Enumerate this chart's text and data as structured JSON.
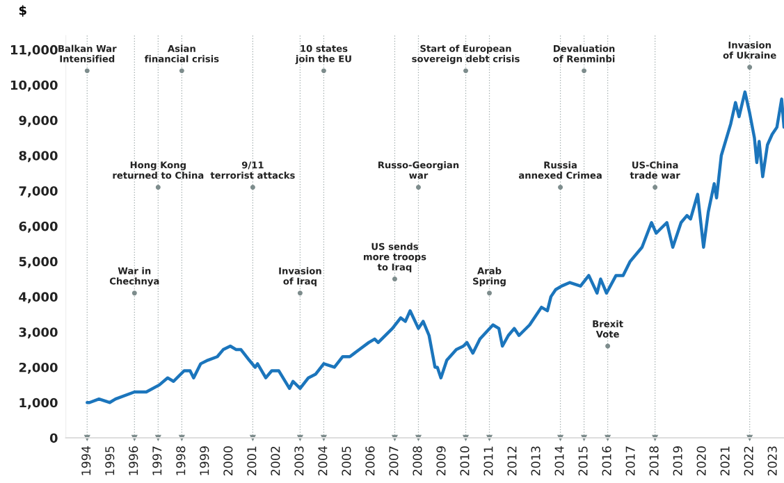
{
  "chart_data": {
    "type": "line",
    "ylabel": "$",
    "series": [
      {
        "color": "#1b75bc",
        "x": [
          1994.0,
          1994.1,
          1994.5,
          1994.95,
          1995.2,
          1996.0,
          1996.5,
          1997.05,
          1997.4,
          1997.65,
          1998.1,
          1998.35,
          1998.5,
          1998.8,
          1999.1,
          1999.5,
          1999.75,
          2000.05,
          2000.3,
          2000.5,
          2000.85,
          2001.1,
          2001.2,
          2001.55,
          2001.8,
          2002.1,
          2002.55,
          2002.7,
          2003.0,
          2003.35,
          2003.65,
          2004.0,
          2004.45,
          2004.8,
          2005.1,
          2005.5,
          2005.9,
          2006.15,
          2006.3,
          2006.9,
          2007.25,
          2007.45,
          2007.65,
          2008.0,
          2008.2,
          2008.45,
          2008.7,
          2008.8,
          2008.95,
          2009.2,
          2009.6,
          2009.9,
          2010.05,
          2010.3,
          2010.6,
          2011.15,
          2011.4,
          2011.55,
          2011.8,
          2012.05,
          2012.25,
          2012.7,
          2013.2,
          2013.45,
          2013.6,
          2013.8,
          2014.05,
          2014.4,
          2014.85,
          2015.2,
          2015.55,
          2015.7,
          2015.95,
          2016.35,
          2016.65,
          2016.95,
          2017.45,
          2017.85,
          2018.05,
          2018.5,
          2018.75,
          2019.1,
          2019.35,
          2019.5,
          2019.8,
          2020.05,
          2020.25,
          2020.5,
          2020.6,
          2020.8,
          2021.2,
          2021.4,
          2021.55,
          2021.8,
          2022.0,
          2022.2,
          2022.3,
          2022.4,
          2022.55,
          2022.75,
          2022.95,
          2023.15,
          2023.35,
          2023.45
        ],
        "values": [
          1000,
          1000,
          1100,
          1000,
          1100,
          1300,
          1300,
          1500,
          1700,
          1600,
          1900,
          1900,
          1700,
          2100,
          2200,
          2300,
          2500,
          2600,
          2500,
          2500,
          2200,
          2000,
          2100,
          1700,
          1900,
          1900,
          1400,
          1600,
          1400,
          1700,
          1800,
          2100,
          2000,
          2300,
          2300,
          2500,
          2700,
          2800,
          2700,
          3100,
          3400,
          3300,
          3600,
          3100,
          3300,
          2900,
          2000,
          2000,
          1700,
          2200,
          2500,
          2600,
          2700,
          2400,
          2800,
          3200,
          3100,
          2600,
          2900,
          3100,
          2900,
          3200,
          3700,
          3600,
          4000,
          4200,
          4300,
          4400,
          4300,
          4600,
          4100,
          4500,
          4100,
          4600,
          4600,
          5000,
          5400,
          6100,
          5800,
          6100,
          5400,
          6100,
          6300,
          6200,
          6900,
          5400,
          6400,
          7200,
          6800,
          8000,
          8900,
          9500,
          9100,
          9800,
          9200,
          8500,
          7800,
          8400,
          7400,
          8300,
          8600,
          8800,
          9600,
          8800
        ]
      }
    ],
    "xlim": [
      1993.1,
      2023.45
    ],
    "xticks": [
      1994,
      1995,
      1996,
      1997,
      1998,
      1999,
      2000,
      2001,
      2002,
      2003,
      2004,
      2005,
      2006,
      2007,
      2008,
      2009,
      2010,
      2011,
      2012,
      2013,
      2014,
      2015,
      2016,
      2017,
      2018,
      2019,
      2020,
      2021,
      2022,
      2023
    ],
    "ylim": [
      0,
      11400
    ],
    "yticks": [
      0,
      {
        "value": 1000,
        "label": "1,000"
      },
      {
        "value": 2000,
        "label": "2,000"
      },
      {
        "value": 3000,
        "label": "3,000"
      },
      {
        "value": 4000,
        "label": "4,000"
      },
      {
        "value": 5000,
        "label": "5,000"
      },
      {
        "value": 6000,
        "label": "6,000"
      },
      {
        "value": 7000,
        "label": "7,000"
      },
      {
        "value": 8000,
        "label": "8,000"
      },
      {
        "value": 9000,
        "label": "9,000"
      },
      {
        "value": 10000,
        "label": "10,000"
      },
      {
        "value": 11000,
        "label": "11,000"
      }
    ],
    "ref_lines": [
      {
        "axis": "x",
        "value": 1994,
        "color": "#9aa6a6",
        "line_style": "dotted"
      },
      {
        "axis": "x",
        "value": 1996,
        "color": "#9aa6a6",
        "line_style": "dotted"
      },
      {
        "axis": "x",
        "value": 1997,
        "color": "#9aa6a6",
        "line_style": "dotted"
      },
      {
        "axis": "x",
        "value": 1998,
        "color": "#9aa6a6",
        "line_style": "dotted"
      },
      {
        "axis": "x",
        "value": 2001,
        "color": "#9aa6a6",
        "line_style": "dotted"
      },
      {
        "axis": "x",
        "value": 2003,
        "color": "#9aa6a6",
        "line_style": "dotted"
      },
      {
        "axis": "x",
        "value": 2004,
        "color": "#9aa6a6",
        "line_style": "dotted"
      },
      {
        "axis": "x",
        "value": 2007,
        "color": "#9aa6a6",
        "line_style": "dotted"
      },
      {
        "axis": "x",
        "value": 2008,
        "color": "#9aa6a6",
        "line_style": "dotted"
      },
      {
        "axis": "x",
        "value": 2010,
        "color": "#9aa6a6",
        "line_style": "dotted"
      },
      {
        "axis": "x",
        "value": 2011,
        "color": "#9aa6a6",
        "line_style": "dotted"
      },
      {
        "axis": "x",
        "value": 2014,
        "color": "#9aa6a6",
        "line_style": "dotted"
      },
      {
        "axis": "x",
        "value": 2015,
        "color": "#9aa6a6",
        "line_style": "dotted"
      },
      {
        "axis": "x",
        "value": 2016,
        "color": "#9aa6a6",
        "line_style": "dotted"
      },
      {
        "axis": "x",
        "value": 2018,
        "color": "#9aa6a6",
        "line_style": "dotted"
      },
      {
        "axis": "x",
        "value": 2022,
        "color": "#9aa6a6",
        "line_style": "dotted"
      }
    ],
    "grid": false,
    "legend": false,
    "line_style": "solid",
    "marker": "none",
    "annotations": [
      {
        "text": "Balkan War\nIntensified",
        "x": 1994,
        "y": 10400
      },
      {
        "text": "War in\nChechnya",
        "x": 1996,
        "y": 4100
      },
      {
        "text": "Hong Kong\nreturned to China",
        "x": 1997,
        "y": 7100
      },
      {
        "text": "Asian\nfinancial crisis",
        "x": 1998,
        "y": 10400
      },
      {
        "text": "9/11\nterrorist attacks",
        "x": 2001,
        "y": 7100
      },
      {
        "text": "Invasion\nof Iraq",
        "x": 2003,
        "y": 4100
      },
      {
        "text": "10 states\njoin the EU",
        "x": 2004,
        "y": 10400
      },
      {
        "text": "US sends\nmore troops\nto Iraq",
        "x": 2007,
        "y": 4500
      },
      {
        "text": "Russo-Georgian\nwar",
        "x": 2008,
        "y": 7100
      },
      {
        "text": "Start of European\nsovereign debt crisis",
        "x": 2010,
        "y": 10400
      },
      {
        "text": "Arab\nSpring",
        "x": 2011,
        "y": 4100
      },
      {
        "text": "Russia\nannexed Crimea",
        "x": 2014,
        "y": 7100
      },
      {
        "text": "Devaluation\nof Renminbi",
        "x": 2015,
        "y": 10400
      },
      {
        "text": "Brexit\nVote",
        "x": 2016,
        "y": 2600
      },
      {
        "text": "US-China\ntrade war",
        "x": 2018,
        "y": 7100
      },
      {
        "text": "Invasion\nof Ukraine",
        "x": 2022,
        "y": 10500
      }
    ]
  }
}
